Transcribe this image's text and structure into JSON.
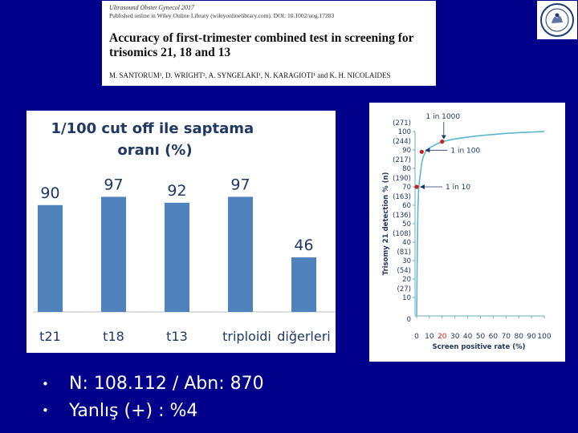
{
  "paper": {
    "journal_line": "Ultrasound Obstet Gynecol 2017",
    "published_line": "Published online in Wiley Online Library (wileyonlinelibrary.com). DOI: 10.1002/uog.17283",
    "title": "Accuracy of first-trimester combined test in screening for trisomics 21, 18 and 13",
    "authors": "M. SANTORUM¹, D. WRIGHT², A. SYNGELAKI¹, N. KARAGIOTI¹ and K. H. NICOLAIDES"
  },
  "logo": {
    "icon": "seal-icon"
  },
  "chart_data": [
    {
      "type": "bar",
      "title": "1/100 cut off ile saptama oranı (%)",
      "categories": [
        "t21",
        "t18",
        "t13",
        "triploidi",
        "diğerleri"
      ],
      "values": [
        90,
        97,
        92,
        97,
        46
      ],
      "data_labels": [
        "90",
        "97",
        "92",
        "97",
        "46"
      ],
      "ylim": [
        0,
        100
      ],
      "grid": false,
      "bar_color": "#4f81bd",
      "label_color": "#1f3864"
    },
    {
      "type": "line",
      "xlabel": "Screen positive rate (%)",
      "ylabel": "Trisomy 21 detection % (n)",
      "x_ticks": [
        "0",
        "10",
        "20",
        "30",
        "40",
        "50",
        "60",
        "70",
        "80",
        "90",
        "100"
      ],
      "y_ticks": [
        {
          "value": 10,
          "label": "10",
          "n": "(27)"
        },
        {
          "value": 20,
          "label": "20",
          "n": "(54)"
        },
        {
          "value": 30,
          "label": "30",
          "n": "(81)"
        },
        {
          "value": 40,
          "label": "40",
          "n": "(108)"
        },
        {
          "value": 50,
          "label": "50",
          "n": "(136)"
        },
        {
          "value": 60,
          "label": "60",
          "n": "(163)"
        },
        {
          "value": 70,
          "label": "70",
          "n": "(190)"
        },
        {
          "value": 80,
          "label": "80",
          "n": "(217)"
        },
        {
          "value": 90,
          "label": "90",
          "n": "(244)"
        },
        {
          "value": 100,
          "label": "100",
          "n": "(271)"
        }
      ],
      "xlim": [
        0,
        100
      ],
      "ylim": [
        0,
        100
      ],
      "curve": {
        "x": [
          0,
          0.5,
          1,
          1.5,
          2,
          3,
          4,
          5,
          7,
          10,
          15,
          20,
          30,
          40,
          50,
          60,
          70,
          80,
          90,
          100
        ],
        "y": [
          0,
          35,
          58,
          68,
          72,
          78,
          83,
          86,
          89,
          91,
          93,
          94.5,
          96,
          97,
          97.8,
          98.4,
          99,
          99.4,
          99.7,
          100
        ]
      },
      "series_color": "#5bb8cf",
      "marker_color": "#cc1f1f",
      "annotations": [
        {
          "text": "1 in 1000",
          "x": 20,
          "y": 94.5
        },
        {
          "text": "1 in 100",
          "x": 4,
          "y": 89
        },
        {
          "text": "1 in 10",
          "x": 0,
          "y": 70
        }
      ]
    }
  ],
  "bullets": [
    "N: 108.112 / Abn: 870",
    "Yanlış (+) : %4"
  ]
}
